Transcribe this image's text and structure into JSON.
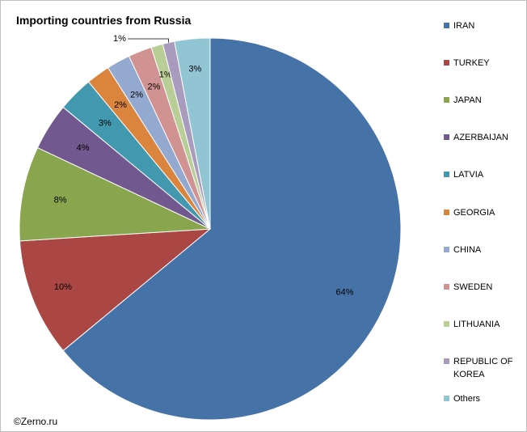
{
  "chart_data": {
    "type": "pie",
    "title": "Importing countries from Russia",
    "categories": [
      "IRAN",
      "TURKEY",
      "JAPAN",
      "AZERBAIJAN",
      "LATVIA",
      "GEORGIA",
      "CHINA",
      "SWEDEN",
      "LITHUANIA",
      "REPUBLIC OF KOREA",
      "Others"
    ],
    "values": [
      64,
      10,
      8,
      4,
      3,
      2,
      2,
      2,
      1,
      1,
      3
    ],
    "labels": [
      "64%",
      "10%",
      "8%",
      "4%",
      "3%",
      "2%",
      "2%",
      "2%",
      "1%",
      "1%",
      "3%"
    ],
    "colors": [
      "#4572A7",
      "#AA4643",
      "#89A54E",
      "#71588F",
      "#4198AF",
      "#DB843D",
      "#93A9CF",
      "#D19392",
      "#B9CD96",
      "#A99BBD",
      "#92C5D3"
    ],
    "legend_position": "right"
  },
  "source": "©Zerno.ru"
}
